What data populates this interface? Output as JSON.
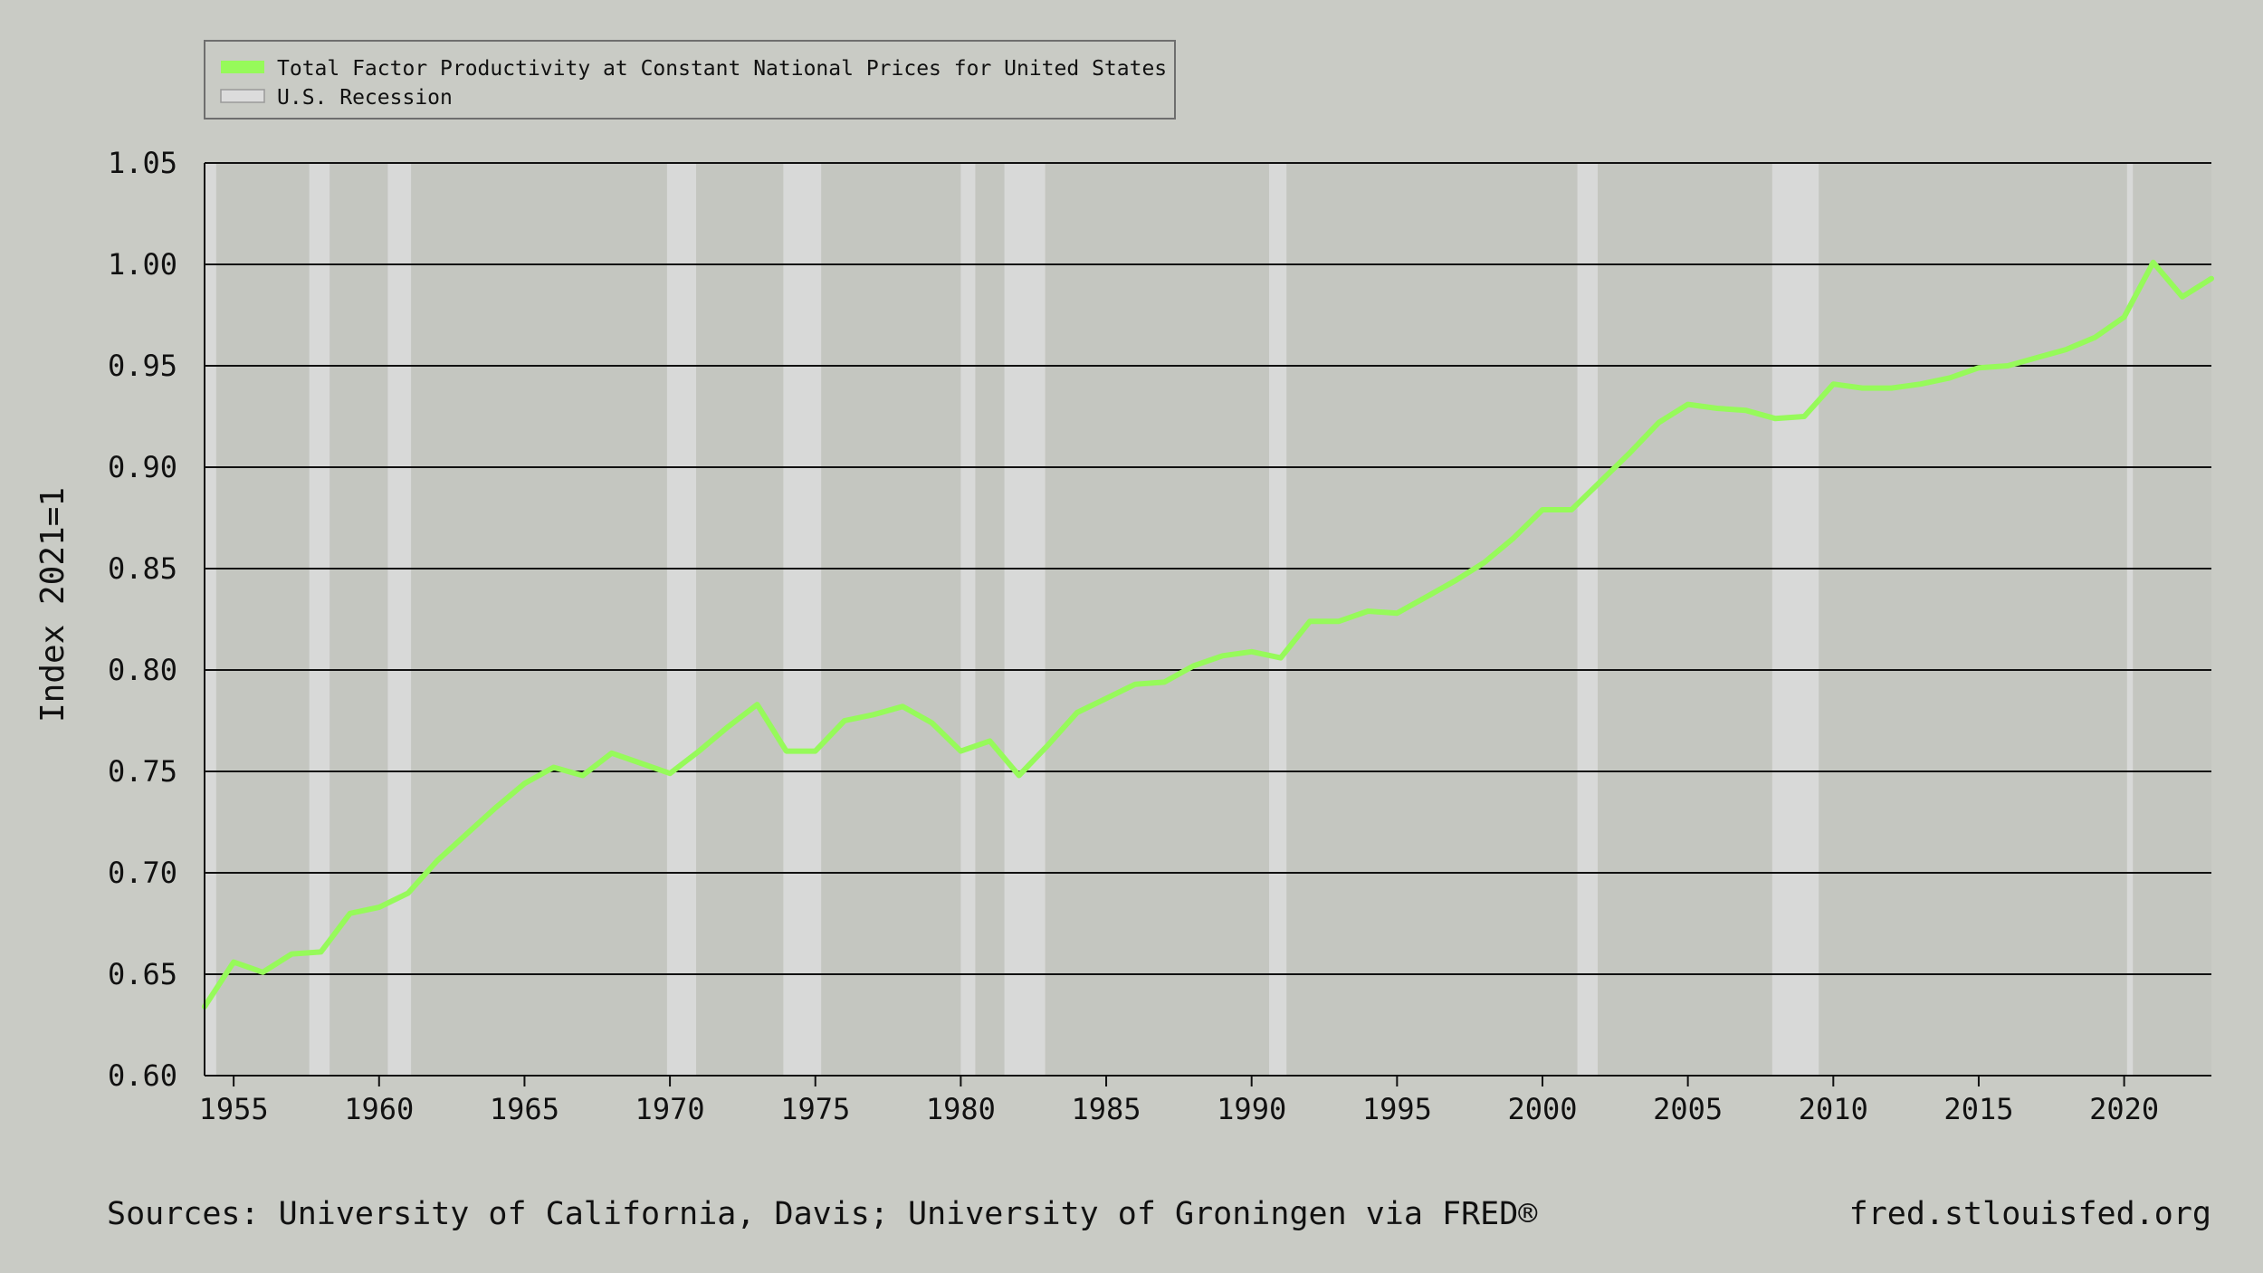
{
  "chart_data": {
    "type": "line",
    "ylabel": "Index 2021=1",
    "xlabel": "",
    "ylim": [
      0.6,
      1.05
    ],
    "xlim": [
      1954,
      2023
    ],
    "x_ticks": [
      "1955",
      "1960",
      "1965",
      "1970",
      "1975",
      "1980",
      "1985",
      "1990",
      "1995",
      "2000",
      "2005",
      "2010",
      "2015",
      "2020"
    ],
    "y_ticks": [
      "0.60",
      "0.65",
      "0.70",
      "0.75",
      "0.80",
      "0.85",
      "0.90",
      "0.95",
      "1.00",
      "1.05"
    ],
    "grid": "horizontal",
    "legend_position": "top-left",
    "legend": [
      {
        "label": "Total Factor Productivity at Constant National Prices for United States",
        "kind": "line",
        "color": "#96fa5a"
      },
      {
        "label": "U.S. Recession",
        "kind": "shade",
        "color": "#dcdcdc"
      }
    ],
    "recessions": [
      [
        1953.6,
        1954.4
      ],
      [
        1957.6,
        1958.3
      ],
      [
        1960.3,
        1961.1
      ],
      [
        1969.9,
        1970.9
      ],
      [
        1973.9,
        1975.2
      ],
      [
        1980.0,
        1980.5
      ],
      [
        1981.5,
        1982.9
      ],
      [
        1990.6,
        1991.2
      ],
      [
        2001.2,
        2001.9
      ],
      [
        2007.9,
        2009.5
      ],
      [
        2020.1,
        2020.3
      ]
    ],
    "series": [
      {
        "name": "Total Factor Productivity at Constant National Prices for United States",
        "color": "#96fa5a",
        "x": [
          1954,
          1955,
          1956,
          1957,
          1958,
          1959,
          1960,
          1961,
          1962,
          1963,
          1964,
          1965,
          1966,
          1967,
          1968,
          1969,
          1970,
          1971,
          1972,
          1973,
          1974,
          1975,
          1976,
          1977,
          1978,
          1979,
          1980,
          1981,
          1982,
          1983,
          1984,
          1985,
          1986,
          1987,
          1988,
          1989,
          1990,
          1991,
          1992,
          1993,
          1994,
          1995,
          1996,
          1997,
          1998,
          1999,
          2000,
          2001,
          2002,
          2003,
          2004,
          2005,
          2006,
          2007,
          2008,
          2009,
          2010,
          2011,
          2012,
          2013,
          2014,
          2015,
          2016,
          2017,
          2018,
          2019,
          2020,
          2021,
          2022,
          2023
        ],
        "values": [
          0.634,
          0.656,
          0.651,
          0.66,
          0.661,
          0.68,
          0.683,
          0.69,
          0.706,
          0.719,
          0.732,
          0.744,
          0.752,
          0.748,
          0.759,
          0.754,
          0.749,
          0.76,
          0.772,
          0.783,
          0.76,
          0.76,
          0.775,
          0.778,
          0.782,
          0.774,
          0.76,
          0.765,
          0.748,
          0.763,
          0.779,
          0.786,
          0.793,
          0.794,
          0.802,
          0.807,
          0.809,
          0.806,
          0.824,
          0.824,
          0.829,
          0.828,
          0.836,
          0.844,
          0.853,
          0.865,
          0.879,
          0.879,
          0.893,
          0.907,
          0.922,
          0.931,
          0.929,
          0.928,
          0.924,
          0.925,
          0.941,
          0.939,
          0.939,
          0.941,
          0.944,
          0.949,
          0.95,
          0.954,
          0.958,
          0.964,
          0.974,
          1.001,
          0.984,
          0.993
        ]
      }
    ]
  },
  "footer": {
    "source": "Sources: University of California, Davis; University of Groningen via FRED®",
    "site": "fred.stlouisfed.org"
  }
}
